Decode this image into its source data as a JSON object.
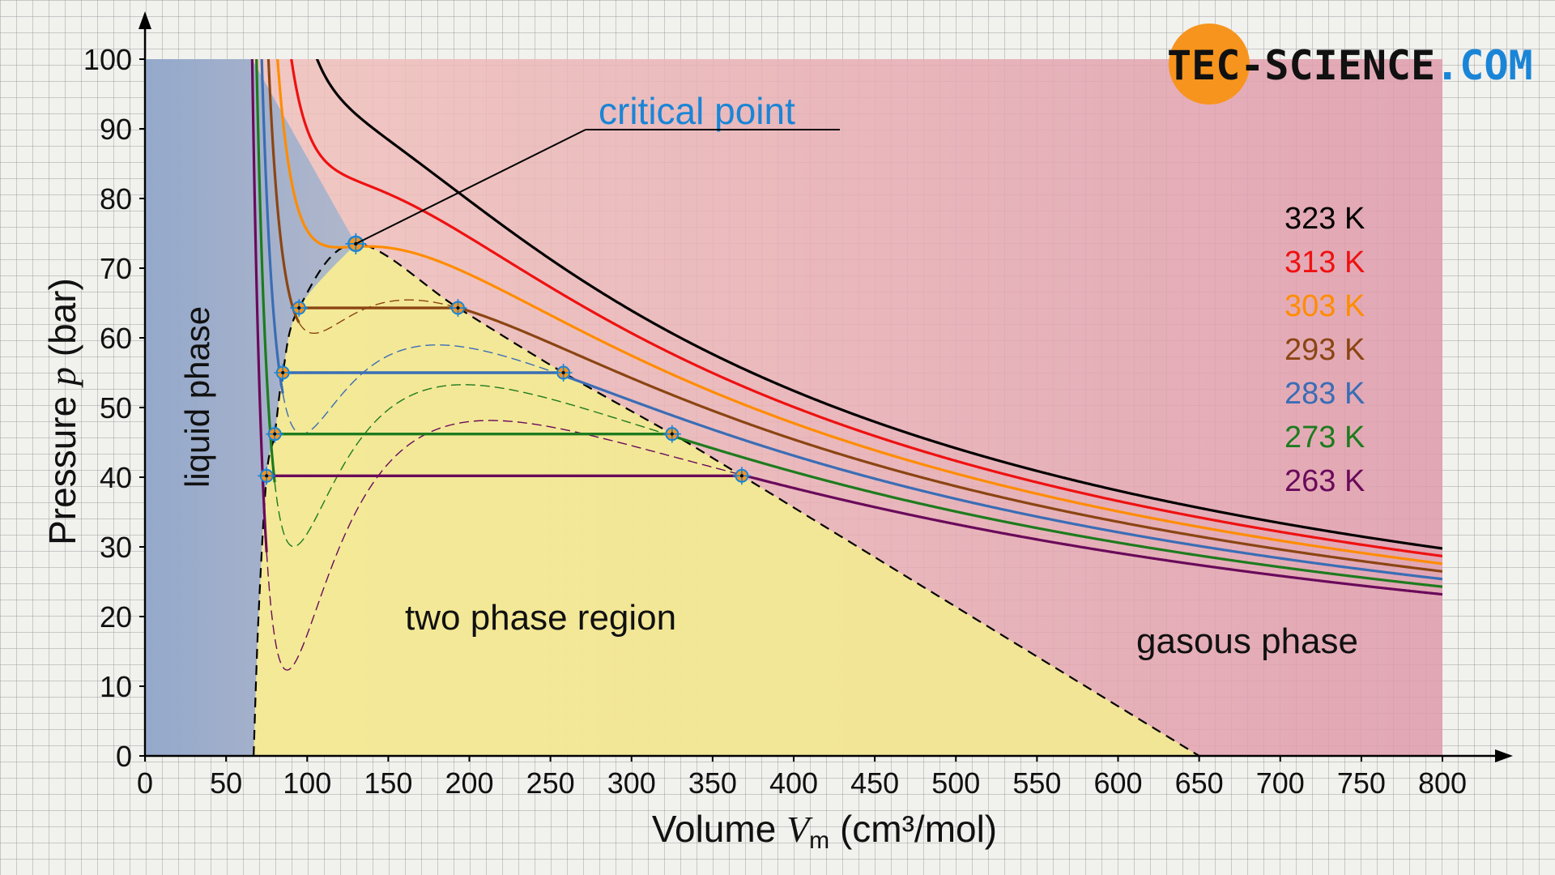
{
  "chart_data": {
    "type": "line",
    "title": "",
    "xlabel": {
      "prefix": "Volume ",
      "symbol": "V",
      "subscript": "m",
      "unit": " (cm³/mol)"
    },
    "ylabel": {
      "prefix": "Pressure ",
      "symbol": "p",
      "unit": " (bar)"
    },
    "xlim": [
      0,
      800
    ],
    "ylim": [
      0,
      100
    ],
    "xticks": [
      0,
      50,
      100,
      150,
      200,
      250,
      300,
      350,
      400,
      450,
      500,
      550,
      600,
      650,
      700,
      750,
      800
    ],
    "yticks": [
      0,
      10,
      20,
      30,
      40,
      50,
      60,
      70,
      80,
      90,
      100
    ],
    "regions": [
      {
        "name": "liquid phase",
        "color": "#8ea7cb"
      },
      {
        "name": "two phase region",
        "color": "#f3f08c"
      },
      {
        "name": "gasous phase",
        "color": "#e39aa6"
      }
    ],
    "series": [
      {
        "name": "323 K",
        "T": 323,
        "color": "#000000",
        "saturation_pressure": null
      },
      {
        "name": "313 K",
        "T": 313,
        "color": "#ee1111",
        "saturation_pressure": null
      },
      {
        "name": "303 K",
        "T": 303,
        "color": "#ff8c00",
        "saturation_pressure": null
      },
      {
        "name": "293 K",
        "T": 293,
        "color": "#8b4513",
        "saturation_pressure": 64.3,
        "vl": 95,
        "vg": 193
      },
      {
        "name": "283 K",
        "T": 283,
        "color": "#3a6db5",
        "saturation_pressure": 55.0,
        "vl": 85,
        "vg": 258
      },
      {
        "name": "273 K",
        "T": 273,
        "color": "#1e7b1e",
        "saturation_pressure": 46.2,
        "vl": 80,
        "vg": 325
      },
      {
        "name": "263 K",
        "T": 263,
        "color": "#6a0a5a",
        "saturation_pressure": 40.2,
        "vl": 75,
        "vg": 368
      }
    ],
    "critical_point": {
      "label": "critical point",
      "V": 130,
      "p": 73.5,
      "color": "#1a85d6"
    },
    "annotations": {
      "liquid": "liquid phase",
      "two_phase": "two phase region",
      "gas": "gasous phase"
    }
  },
  "logo": {
    "part1": "TEC-",
    "part2": "SCIENCE",
    "part3": ".COM"
  }
}
